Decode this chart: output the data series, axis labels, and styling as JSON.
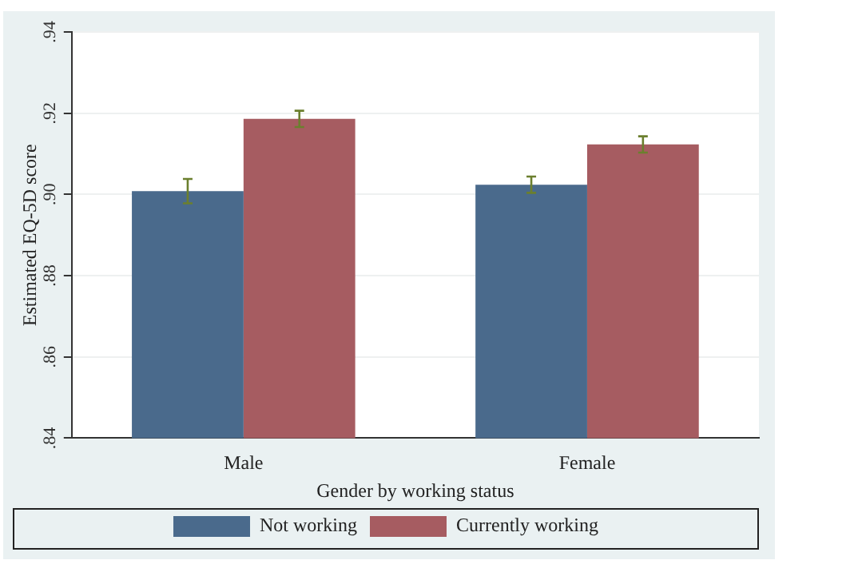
{
  "chart_data": {
    "type": "bar",
    "xlabel": "Gender by working status",
    "ylabel": "Estimated EQ-5D score",
    "categories": [
      "Male",
      "Female"
    ],
    "series": [
      {
        "name": "Not working",
        "color": "#4a6a8c",
        "values": [
          0.9008,
          0.9024
        ],
        "errors": [
          0.003,
          0.002
        ]
      },
      {
        "name": "Currently working",
        "color": "#a65c61",
        "values": [
          0.9186,
          0.9123
        ],
        "errors": [
          0.002,
          0.002
        ]
      }
    ],
    "ylim": [
      0.84,
      0.94
    ],
    "yticks": [
      {
        "value": 0.84,
        "label": ".84"
      },
      {
        "value": 0.86,
        "label": ".86"
      },
      {
        "value": 0.88,
        "label": ".88"
      },
      {
        "value": 0.9,
        "label": ".90"
      },
      {
        "value": 0.92,
        "label": ".92"
      },
      {
        "value": 0.94,
        "label": ".94"
      }
    ],
    "grid": "y",
    "legend": "bottom"
  }
}
